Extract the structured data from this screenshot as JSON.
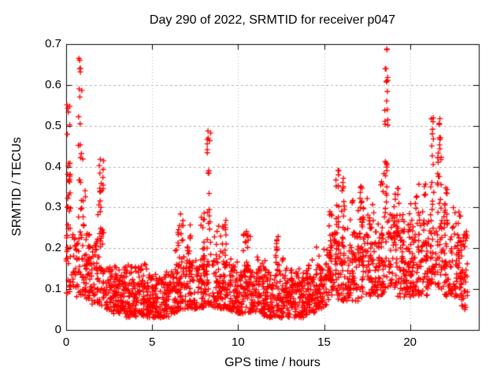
{
  "chart_data": {
    "type": "scatter",
    "title": "Day 290 of 2022, SRMTID for receiver p047",
    "xlabel": "GPS time / hours",
    "ylabel": "SRMTID / TECUs",
    "xlim": [
      0,
      24
    ],
    "ylim": [
      0,
      0.7
    ],
    "x_ticks": [
      0,
      5,
      10,
      15,
      20
    ],
    "x_tick_labels": [
      "0",
      "5",
      "10",
      "15",
      "20"
    ],
    "y_ticks": [
      0,
      0.1,
      0.2,
      0.3,
      0.4,
      0.5,
      0.6,
      0.7
    ],
    "y_tick_labels": [
      "0",
      "0.1",
      "0.2",
      "0.3",
      "0.4",
      "0.5",
      "0.6",
      "0.7"
    ],
    "grid": true,
    "legend": false,
    "marker": "plus",
    "marker_color": "#ff0000",
    "grid_color": "#b3b3b3",
    "axis_color": "#000000",
    "background": "#ffffff",
    "seed": 290047,
    "data_end_hour": 23.35,
    "features": [
      {
        "t": 0.15,
        "peak": 0.56
      },
      {
        "t": 0.8,
        "peak": 0.67
      },
      {
        "t": 1.05,
        "peak": 0.42
      },
      {
        "t": 2.0,
        "peak": 0.42
      },
      {
        "t": 6.7,
        "peak": 0.32
      },
      {
        "t": 8.3,
        "peak": 0.505
      },
      {
        "t": 9.2,
        "peak": 0.28
      },
      {
        "t": 15.8,
        "peak": 0.4
      },
      {
        "t": 18.6,
        "peak": 0.69
      },
      {
        "t": 21.5,
        "peak": 0.52
      },
      {
        "t": 23.2,
        "peak": 0.21
      }
    ],
    "density_profile": {
      "note": "binned envelope read from plot: [t_start, t_end, band_lo, band_hi, bin_max, spike_center_or_null, n_points]",
      "bins": [
        [
          0.0,
          0.5,
          0.09,
          0.26,
          0.56,
          0.15,
          58
        ],
        [
          0.5,
          1.0,
          0.08,
          0.26,
          0.67,
          0.82,
          60
        ],
        [
          1.0,
          1.5,
          0.07,
          0.24,
          0.42,
          1.05,
          56
        ],
        [
          1.5,
          2.0,
          0.06,
          0.22,
          0.41,
          1.92,
          56
        ],
        [
          2.0,
          2.5,
          0.05,
          0.16,
          0.42,
          2.07,
          56
        ],
        [
          2.5,
          3.0,
          0.04,
          0.13,
          0.17,
          null,
          56
        ],
        [
          3.0,
          3.5,
          0.04,
          0.13,
          0.16,
          null,
          56
        ],
        [
          3.5,
          4.0,
          0.03,
          0.12,
          0.16,
          null,
          56
        ],
        [
          4.0,
          4.5,
          0.03,
          0.12,
          0.16,
          null,
          56
        ],
        [
          4.5,
          5.0,
          0.03,
          0.12,
          0.17,
          null,
          56
        ],
        [
          5.0,
          5.5,
          0.03,
          0.11,
          0.14,
          null,
          56
        ],
        [
          5.5,
          6.0,
          0.03,
          0.12,
          0.15,
          null,
          56
        ],
        [
          6.0,
          6.5,
          0.04,
          0.15,
          0.25,
          6.45,
          56
        ],
        [
          6.5,
          7.0,
          0.05,
          0.18,
          0.32,
          6.7,
          58
        ],
        [
          7.0,
          7.5,
          0.05,
          0.17,
          0.26,
          7.15,
          56
        ],
        [
          7.5,
          8.0,
          0.05,
          0.18,
          0.3,
          7.95,
          56
        ],
        [
          8.0,
          8.5,
          0.06,
          0.2,
          0.505,
          8.3,
          60
        ],
        [
          8.5,
          9.0,
          0.05,
          0.18,
          0.26,
          null,
          56
        ],
        [
          9.0,
          9.5,
          0.05,
          0.17,
          0.28,
          9.2,
          56
        ],
        [
          9.5,
          10.0,
          0.04,
          0.15,
          0.18,
          null,
          56
        ],
        [
          10.0,
          10.5,
          0.04,
          0.15,
          0.25,
          10.4,
          56
        ],
        [
          10.5,
          11.0,
          0.04,
          0.15,
          0.25,
          10.6,
          56
        ],
        [
          11.0,
          11.5,
          0.04,
          0.14,
          0.18,
          null,
          56
        ],
        [
          11.5,
          12.0,
          0.03,
          0.13,
          0.17,
          null,
          56
        ],
        [
          12.0,
          12.5,
          0.03,
          0.14,
          0.23,
          12.3,
          56
        ],
        [
          12.5,
          13.0,
          0.03,
          0.13,
          0.18,
          null,
          56
        ],
        [
          13.0,
          13.5,
          0.03,
          0.12,
          0.15,
          null,
          56
        ],
        [
          13.5,
          14.0,
          0.03,
          0.12,
          0.16,
          null,
          56
        ],
        [
          14.0,
          14.5,
          0.04,
          0.13,
          0.18,
          null,
          56
        ],
        [
          14.5,
          15.0,
          0.05,
          0.15,
          0.22,
          null,
          56
        ],
        [
          15.0,
          15.5,
          0.06,
          0.2,
          0.3,
          15.4,
          56
        ],
        [
          15.5,
          16.0,
          0.07,
          0.25,
          0.4,
          15.8,
          58
        ],
        [
          16.0,
          16.5,
          0.07,
          0.25,
          0.38,
          16.1,
          58
        ],
        [
          16.5,
          17.0,
          0.07,
          0.22,
          0.32,
          null,
          56
        ],
        [
          17.0,
          17.5,
          0.08,
          0.25,
          0.36,
          17.2,
          56
        ],
        [
          17.5,
          18.0,
          0.08,
          0.24,
          0.33,
          null,
          56
        ],
        [
          18.0,
          18.5,
          0.08,
          0.26,
          0.4,
          18.4,
          56
        ],
        [
          18.5,
          19.0,
          0.1,
          0.3,
          0.69,
          18.62,
          64
        ],
        [
          19.0,
          19.5,
          0.08,
          0.25,
          0.35,
          null,
          56
        ],
        [
          19.5,
          20.0,
          0.08,
          0.24,
          0.3,
          null,
          60
        ],
        [
          20.0,
          20.5,
          0.08,
          0.25,
          0.33,
          null,
          56
        ],
        [
          20.5,
          21.0,
          0.08,
          0.26,
          0.36,
          null,
          56
        ],
        [
          21.0,
          21.5,
          0.1,
          0.28,
          0.52,
          21.3,
          58
        ],
        [
          21.5,
          22.0,
          0.1,
          0.28,
          0.52,
          21.7,
          58
        ],
        [
          22.0,
          22.5,
          0.08,
          0.25,
          0.35,
          22.1,
          56
        ],
        [
          22.5,
          23.0,
          0.08,
          0.22,
          0.3,
          null,
          56
        ],
        [
          23.0,
          23.35,
          0.05,
          0.21,
          0.25,
          23.2,
          34
        ]
      ]
    }
  }
}
